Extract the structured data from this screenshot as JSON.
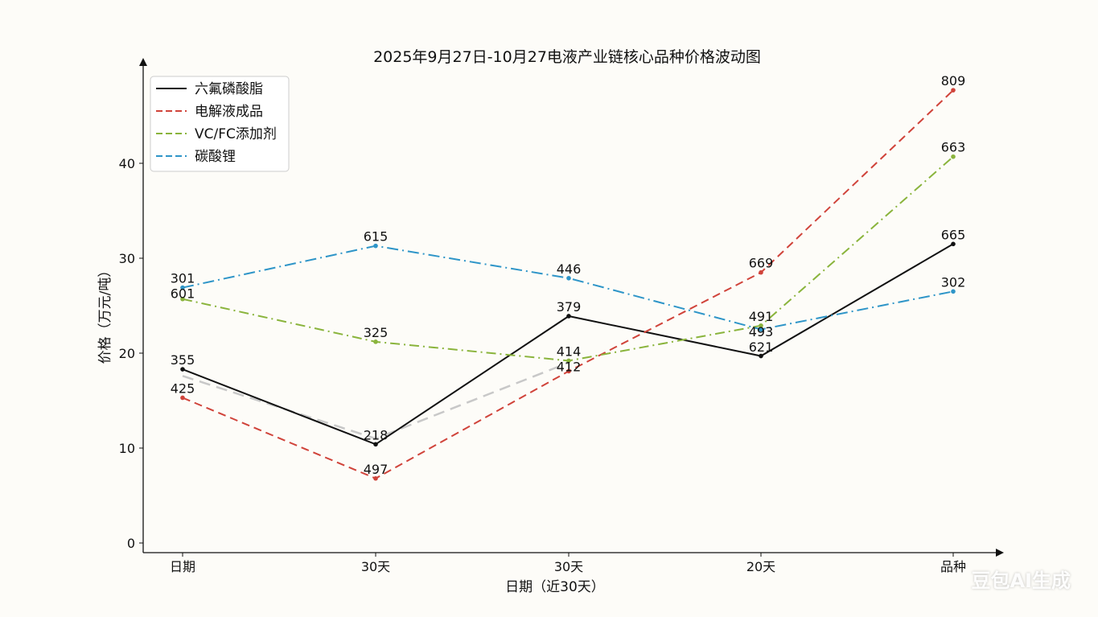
{
  "chart_data": {
    "type": "line",
    "title": "2025年9月27日-10月27电液产业链核心品种价格波动图",
    "xlabel": "日期（近30天）",
    "ylabel": "价格（万元/吨）",
    "categories": [
      "日期",
      "30天",
      "30天",
      "20天",
      "品种"
    ],
    "ylim": [
      0,
      50
    ],
    "yticks": [
      0,
      10,
      20,
      30,
      40
    ],
    "grid": false,
    "legend_position": "top-left",
    "series": [
      {
        "name": "六氟磷酸脂",
        "color": "#111111",
        "dash": "",
        "values": [
          18.3,
          10.4,
          23.9,
          19.7,
          31.5
        ],
        "labels": [
          "355",
          "218",
          "379",
          "621",
          "665"
        ]
      },
      {
        "name": "电解液成品",
        "color": "#d0433a",
        "dash": "10,6",
        "values": [
          15.3,
          6.8,
          18.1,
          28.5,
          47.7
        ],
        "labels": [
          "425",
          "497",
          "412",
          "669",
          "809"
        ]
      },
      {
        "name": "VC/FC添加剂",
        "color": "#8ab43c",
        "dash": "12,5,2,5",
        "values": [
          25.7,
          21.2,
          19.2,
          22.9,
          40.7
        ],
        "labels": [
          "601",
          "325",
          "414",
          "491",
          "663"
        ]
      },
      {
        "name": "碳酸锂",
        "color": "#2e95c8",
        "dash": "14,5,2,5",
        "values": [
          26.9,
          31.3,
          27.9,
          22.5,
          26.5
        ],
        "labels": [
          "301",
          "615",
          "446",
          "493",
          "302"
        ]
      }
    ],
    "ghost_series": {
      "color": "#c8c8c8",
      "dash": "14,8",
      "values": [
        17.6,
        11.0,
        19.0
      ]
    }
  },
  "watermark": "豆包AI生成"
}
